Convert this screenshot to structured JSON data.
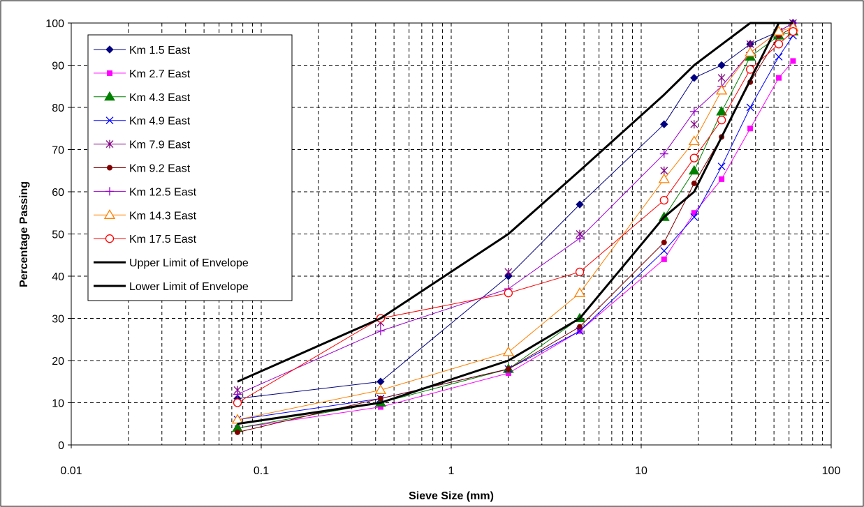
{
  "chart_data": {
    "type": "line",
    "title": "",
    "xlabel": "Sieve Size (mm)",
    "ylabel": "Percentage Passing",
    "x_scale": "log",
    "xlim": [
      0.01,
      100
    ],
    "ylim": [
      0,
      100
    ],
    "x_ticks": [
      "0.01",
      "0.1",
      "1",
      "10",
      "100"
    ],
    "y_ticks": [
      "0",
      "10",
      "20",
      "30",
      "40",
      "50",
      "60",
      "70",
      "80",
      "90",
      "100"
    ],
    "grid": true,
    "legend_position": "top-left",
    "x": [
      0.075,
      0.425,
      2,
      4.75,
      13.2,
      19,
      26.5,
      37.5,
      53,
      63
    ],
    "series": [
      {
        "name": "Km 1.5 East",
        "color": "#000080",
        "marker": "diamond",
        "line": true,
        "values": [
          11,
          15,
          40,
          57,
          76,
          87,
          90,
          95,
          98,
          100
        ]
      },
      {
        "name": "Km 2.7 East",
        "color": "#FF00FF",
        "marker": "square",
        "line": true,
        "values": [
          4,
          9,
          17,
          27,
          44,
          55,
          63,
          75,
          87,
          91
        ]
      },
      {
        "name": "Km 4.3 East",
        "color": "#008000",
        "marker": "triangle-filled",
        "line": true,
        "values": [
          4,
          10,
          18,
          30,
          54,
          65,
          79,
          92,
          97,
          98
        ]
      },
      {
        "name": "Km 4.9 East",
        "color": "#0000FF",
        "marker": "x",
        "line": true,
        "values": [
          6,
          11,
          18,
          27,
          46,
          54,
          66,
          80,
          92,
          97
        ]
      },
      {
        "name": "Km 7.9 East",
        "color": "#800080",
        "marker": "star",
        "line": false,
        "values": [
          13,
          29,
          41,
          50,
          65,
          76,
          87,
          95,
          98,
          100
        ]
      },
      {
        "name": "Km 9.2 East",
        "color": "#800000",
        "marker": "circle-filled",
        "line": true,
        "values": [
          3,
          11,
          18,
          28,
          48,
          62,
          73,
          86,
          97,
          99
        ]
      },
      {
        "name": "Km 12.5 East",
        "color": "#9900CC",
        "marker": "plus",
        "line": true,
        "values": [
          12,
          27,
          37,
          49,
          69,
          79,
          85,
          93,
          98,
          100
        ]
      },
      {
        "name": "Km 14.3 East",
        "color": "#FF8000",
        "marker": "triangle-open",
        "line": true,
        "values": [
          6,
          13,
          22,
          36,
          63,
          72,
          84,
          93,
          98,
          99
        ]
      },
      {
        "name": "Km 17.5 East",
        "color": "#FF0000",
        "marker": "circle-open",
        "line": true,
        "values": [
          10,
          30,
          36,
          41,
          58,
          68,
          77,
          89,
          95,
          98
        ]
      },
      {
        "name": "Upper Limit of Envelope",
        "color": "#000000",
        "marker": "none",
        "line": true,
        "thick": true,
        "points": [
          [
            0.075,
            15
          ],
          [
            0.425,
            30
          ],
          [
            2,
            50
          ],
          [
            4.75,
            65
          ],
          [
            13.2,
            83
          ],
          [
            19,
            90
          ],
          [
            37.5,
            100
          ],
          [
            63,
            100
          ]
        ]
      },
      {
        "name": "Lower Limit of Envelope",
        "color": "#000000",
        "marker": "none",
        "line": true,
        "thick": true,
        "points": [
          [
            0.075,
            5
          ],
          [
            0.425,
            10
          ],
          [
            2,
            20
          ],
          [
            4.75,
            30
          ],
          [
            13.2,
            54
          ],
          [
            19,
            60
          ],
          [
            53,
            100
          ],
          [
            63,
            100
          ]
        ]
      }
    ]
  }
}
